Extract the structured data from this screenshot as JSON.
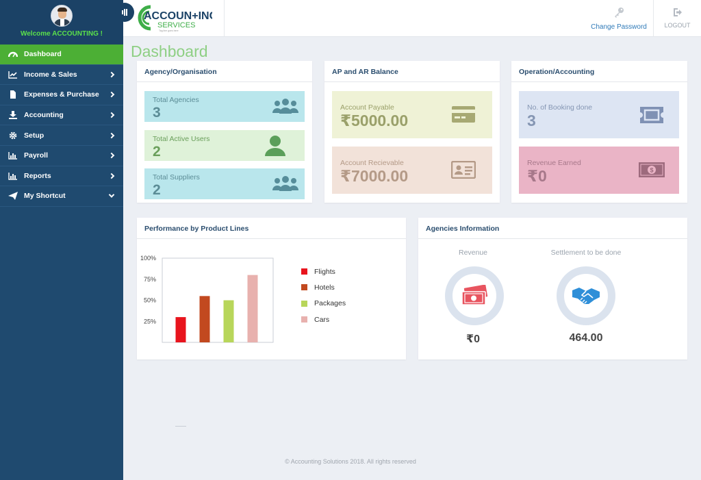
{
  "profile": {
    "welcome": "Welcome ACCOUNTING !"
  },
  "sidebar": {
    "items": [
      {
        "label": "Dashboard"
      },
      {
        "label": "Income & Sales"
      },
      {
        "label": "Expenses & Purchase"
      },
      {
        "label": "Accounting"
      },
      {
        "label": "Setup"
      },
      {
        "label": "Payroll"
      },
      {
        "label": "Reports"
      },
      {
        "label": "My Shortcut"
      }
    ]
  },
  "header": {
    "logo_main": "ACCOUN+ING",
    "logo_sub": "SERVICES",
    "logo_tagline": "Tag line goes here",
    "change_password": "Change Password",
    "logout": "LOGOUT"
  },
  "page": {
    "title": "Dashboard"
  },
  "agency_panel": {
    "title": "Agency/Organisation",
    "tiles": [
      {
        "label": "Total Agencies",
        "value": "3"
      },
      {
        "label": "Total Active Users",
        "value": "2"
      },
      {
        "label": "Total Suppliers",
        "value": "2"
      }
    ]
  },
  "ap_ar_panel": {
    "title": "AP and AR Balance",
    "tiles": [
      {
        "label": "Account Payable",
        "value": "₹5000.00"
      },
      {
        "label": "Account Recievable",
        "value": "₹7000.00"
      }
    ]
  },
  "operation_panel": {
    "title": "Operation/Accounting",
    "tiles": [
      {
        "label": "No. of Booking done",
        "value": "3"
      },
      {
        "label": "Revenue Earned",
        "value": "₹0"
      }
    ]
  },
  "performance_panel": {
    "title": "Performance by Product Lines"
  },
  "agencies_info_panel": {
    "title": "Agencies Information",
    "revenue_label": "Revenue",
    "revenue_value": "₹0",
    "settlement_label": "Settlement to be done",
    "settlement_value": "464.00"
  },
  "footer": {
    "text": "© Accounting Solutions 2018. All rights reserved"
  },
  "colors": {
    "sidebar": "#1f4a6f",
    "active": "#4caf35",
    "accent_green": "#8ecf84"
  },
  "chart_data": {
    "type": "bar",
    "categories": [
      "Flights",
      "Hotels",
      "Packages",
      "Cars"
    ],
    "values": [
      30,
      55,
      50,
      80
    ],
    "colors": [
      "#e8141d",
      "#c2491f",
      "#b8d65a",
      "#e8b1ae"
    ],
    "yticks": [
      "25%",
      "50%",
      "75%",
      "100%"
    ],
    "ylim": [
      0,
      100
    ],
    "grid": false,
    "legend": "right"
  }
}
